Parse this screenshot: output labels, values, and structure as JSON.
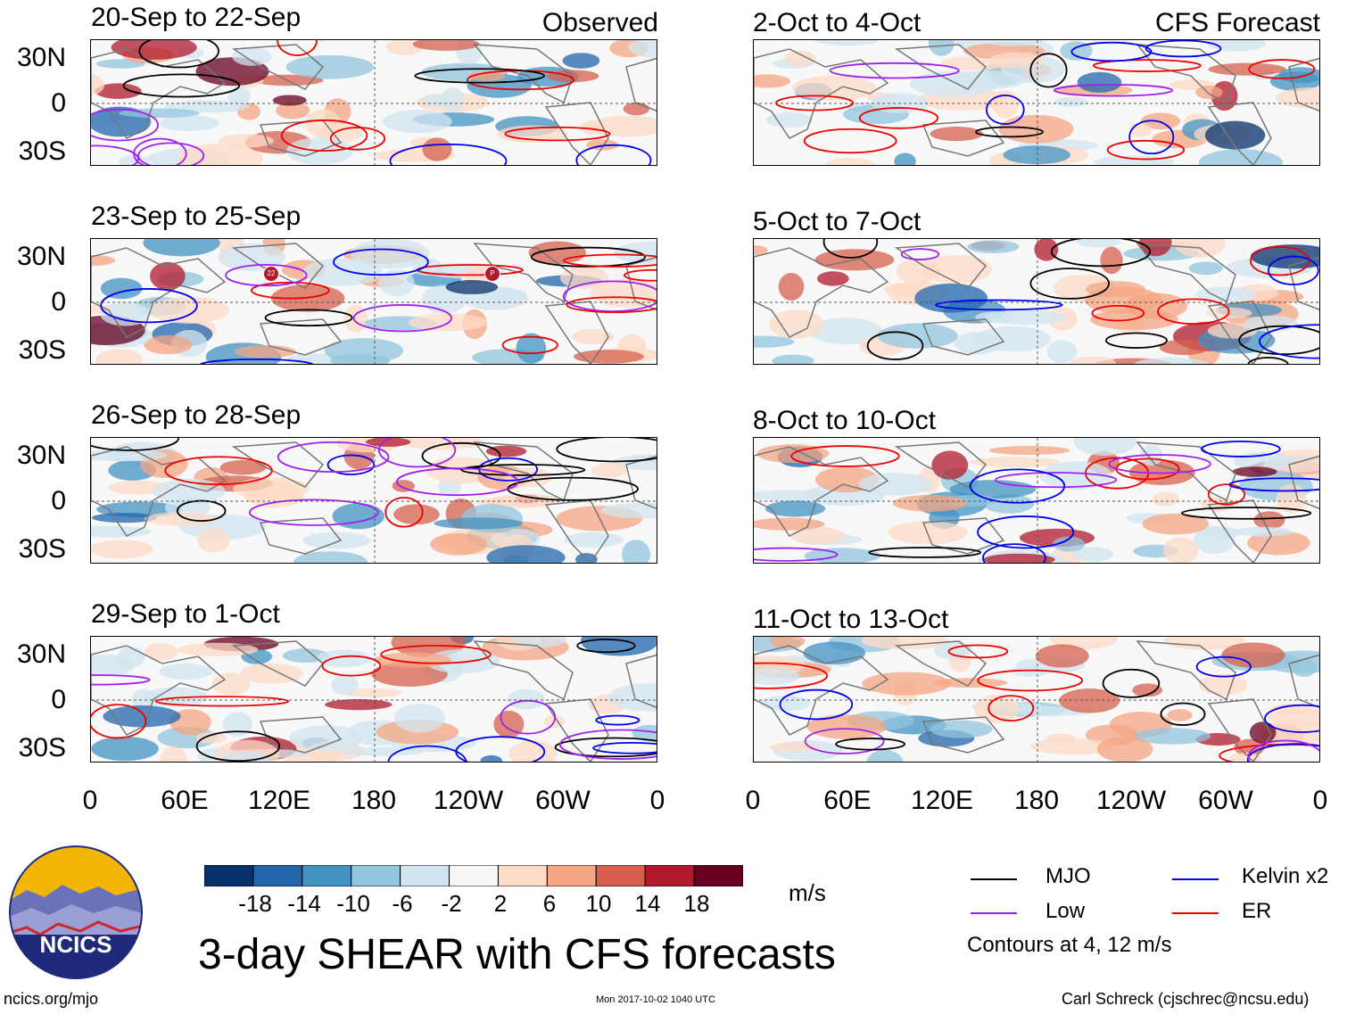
{
  "panels": {
    "observed": [
      {
        "title": "20-Sep to 22-Sep",
        "tag": "Observed"
      },
      {
        "title": "23-Sep to 25-Sep",
        "tag": ""
      },
      {
        "title": "26-Sep to 28-Sep",
        "tag": ""
      },
      {
        "title": "29-Sep to 1-Oct",
        "tag": ""
      }
    ],
    "forecast": [
      {
        "title": "2-Oct to 4-Oct",
        "tag": "CFS Forecast"
      },
      {
        "title": "5-Oct to 7-Oct",
        "tag": ""
      },
      {
        "title": "8-Oct to 10-Oct",
        "tag": ""
      },
      {
        "title": "11-Oct to 13-Oct",
        "tag": ""
      }
    ]
  },
  "axes": {
    "lat_labels": [
      "30N",
      "0",
      "30S"
    ],
    "lon_labels": [
      "0",
      "60E",
      "120E",
      "180",
      "120W",
      "60W",
      "0"
    ]
  },
  "colorbar": {
    "labels": [
      "-18",
      "-14",
      "-10",
      "-6",
      "-2",
      "2",
      "6",
      "10",
      "14",
      "18"
    ],
    "colors": [
      "#08306b",
      "#2166ac",
      "#4393c3",
      "#92c5de",
      "#d1e5f0",
      "#f7f7f7",
      "#fddbc7",
      "#f4a582",
      "#d6604d",
      "#b2182b",
      "#67001f"
    ],
    "unit": "m/s"
  },
  "legend": {
    "items": [
      {
        "label": "MJO",
        "color": "#000000"
      },
      {
        "label": "Kelvin x2",
        "color": "#0000ee"
      },
      {
        "label": "Low",
        "color": "#a020f0"
      },
      {
        "label": "ER",
        "color": "#ee0000"
      }
    ],
    "note": "Contours at 4, 12 m/s"
  },
  "logo": {
    "text": "NCICS"
  },
  "main_title": "3-day SHEAR with CFS forecasts",
  "footer": {
    "url": "ncics.org/mjo",
    "timestamp": "Mon 2017-10-02 1040 UTC",
    "author": "Carl Schreck (cjschrec@ncsu.edu)"
  },
  "storm_markers": [
    "22",
    "P"
  ]
}
